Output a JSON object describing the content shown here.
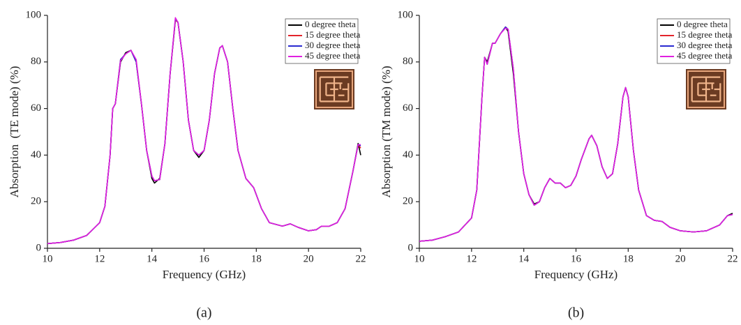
{
  "chart_data": [
    {
      "type": "line",
      "label": "(a)",
      "xlabel": "Frequency (GHz)",
      "ylabel": "Absorption  (TE mode) (%)",
      "xlim": [
        10,
        22
      ],
      "xticks": [
        10,
        12,
        14,
        16,
        18,
        20,
        22
      ],
      "ylim": [
        0,
        100
      ],
      "yticks": [
        0,
        20,
        40,
        60,
        80,
        100
      ],
      "legend": "upper right",
      "x": [
        10,
        10.5,
        11,
        11.5,
        12,
        12.2,
        12.4,
        12.5,
        12.6,
        12.8,
        13,
        13.2,
        13.4,
        13.6,
        13.8,
        14,
        14.1,
        14.3,
        14.5,
        14.7,
        14.9,
        15,
        15.2,
        15.4,
        15.6,
        15.8,
        16,
        16.2,
        16.4,
        16.6,
        16.7,
        16.9,
        17.1,
        17.3,
        17.6,
        17.9,
        18.2,
        18.5,
        19,
        19.3,
        19.6,
        20,
        20.3,
        20.5,
        20.8,
        21.1,
        21.4,
        21.7,
        21.9,
        22
      ],
      "series": [
        {
          "name": "0 degree theta",
          "color": "#000000",
          "values": [
            2,
            2.5,
            3.5,
            5.5,
            11,
            18,
            40,
            60,
            62,
            80,
            84,
            85,
            80,
            62,
            42,
            30,
            28,
            30,
            45,
            75,
            98,
            97,
            80,
            55,
            42,
            39,
            42,
            55,
            75,
            86,
            87,
            80,
            60,
            42,
            30,
            26,
            17,
            11,
            9.5,
            10.5,
            9,
            7.5,
            8,
            9.5,
            9.5,
            11,
            17,
            33,
            45,
            40
          ]
        },
        {
          "name": "15 degree theta",
          "color": "#e3242b",
          "values": [
            2,
            2.5,
            3.5,
            5.5,
            11,
            18,
            40,
            60,
            62,
            81,
            83.5,
            85,
            80,
            62,
            42,
            31,
            29,
            29.5,
            45,
            75,
            98,
            97,
            80,
            55,
            42,
            40,
            42,
            55,
            75,
            86,
            87,
            80,
            60,
            42,
            30,
            26,
            17,
            11,
            9.5,
            10.5,
            9,
            7.5,
            8,
            9.5,
            9.5,
            11,
            17,
            33,
            44.5,
            43
          ]
        },
        {
          "name": "30 degree theta",
          "color": "#2a2ad0",
          "values": [
            2,
            2.5,
            3.5,
            5.5,
            11,
            18,
            40,
            60,
            62,
            81,
            83.5,
            85,
            80,
            62,
            42,
            31,
            29,
            29.5,
            45,
            75,
            98.5,
            97,
            80,
            55,
            42,
            40,
            42,
            55,
            75,
            86,
            87,
            80,
            60,
            42,
            30,
            26,
            17,
            11,
            9.5,
            10.5,
            9,
            7.5,
            8,
            9.5,
            9.5,
            11,
            17,
            33,
            44.5,
            44
          ]
        },
        {
          "name": "45 degree theta",
          "color": "#e020e0",
          "values": [
            2,
            2.5,
            3.5,
            5.5,
            11,
            18,
            40,
            60,
            62,
            80.5,
            83.5,
            85,
            81,
            62,
            42,
            31,
            29,
            29.5,
            45,
            75,
            99,
            97,
            80,
            55,
            42,
            40,
            42,
            55,
            75,
            86,
            87,
            80,
            60,
            42,
            30,
            26,
            17,
            11,
            9.5,
            10.5,
            9,
            7.5,
            8,
            9.5,
            9.5,
            11,
            17,
            33,
            44.5,
            44.5
          ]
        }
      ]
    },
    {
      "type": "line",
      "label": "(b)",
      "xlabel": "Frequency (GHz)",
      "ylabel": "Absorption (TM mode) (%)",
      "xlim": [
        10,
        22
      ],
      "xticks": [
        10,
        12,
        14,
        16,
        18,
        20,
        22
      ],
      "ylim": [
        0,
        100
      ],
      "yticks": [
        0,
        20,
        40,
        60,
        80,
        100
      ],
      "legend": "upper right",
      "x": [
        10,
        10.5,
        11,
        11.5,
        12,
        12.2,
        12.4,
        12.5,
        12.6,
        12.8,
        12.9,
        13.1,
        13.3,
        13.4,
        13.6,
        13.8,
        14,
        14.2,
        14.4,
        14.6,
        14.8,
        15,
        15.2,
        15.4,
        15.6,
        15.8,
        16,
        16.2,
        16.5,
        16.6,
        16.8,
        17,
        17.2,
        17.4,
        17.6,
        17.8,
        17.9,
        18,
        18.2,
        18.4,
        18.7,
        19,
        19.3,
        19.6,
        20,
        20.5,
        21,
        21.5,
        21.8,
        22
      ],
      "series": [
        {
          "name": "0 degree theta",
          "color": "#000000",
          "values": [
            3,
            3.5,
            5,
            7,
            13,
            25,
            65,
            82,
            80,
            88,
            88,
            92,
            95,
            93,
            75,
            50,
            32,
            23,
            19,
            20,
            26,
            30,
            28,
            28,
            26,
            27,
            31,
            38,
            47,
            48.5,
            44,
            35,
            30,
            32,
            45,
            65,
            69,
            65,
            42,
            25,
            14,
            12,
            11.5,
            9,
            7.5,
            7,
            7.5,
            10,
            14,
            15
          ]
        },
        {
          "name": "15 degree theta",
          "color": "#e3242b",
          "values": [
            3,
            3.5,
            5,
            7,
            13,
            25,
            65,
            82,
            79,
            88,
            88,
            92,
            95,
            94,
            77,
            50,
            32,
            23,
            18.5,
            20,
            26,
            30,
            28,
            28,
            26,
            27,
            31,
            38,
            47,
            48.5,
            44,
            35,
            30,
            32,
            45,
            65,
            69,
            65,
            42,
            25,
            14,
            12,
            11.5,
            9,
            7.5,
            7,
            7.5,
            10,
            14,
            14.5
          ]
        },
        {
          "name": "30 degree theta",
          "color": "#2a2ad0",
          "values": [
            3,
            3.5,
            5,
            7,
            13,
            25,
            65,
            82,
            79,
            88,
            88,
            92,
            95,
            94,
            77,
            50,
            32,
            23,
            18.5,
            20,
            26,
            30,
            28,
            28,
            26,
            27,
            31,
            38,
            47,
            48.5,
            44,
            35,
            30,
            32,
            45,
            65,
            69,
            65,
            42,
            25,
            14,
            12,
            11.5,
            9,
            7.5,
            7,
            7.5,
            10,
            14,
            14.5
          ]
        },
        {
          "name": "45 degree theta",
          "color": "#e020e0",
          "values": [
            3,
            3.5,
            5,
            7,
            13,
            25,
            65,
            82,
            79,
            88,
            88,
            92,
            94.5,
            94,
            77,
            50,
            32,
            23,
            18.5,
            20,
            26,
            30,
            28,
            28,
            26,
            27,
            31,
            38,
            47,
            48.5,
            44,
            35,
            30,
            32,
            45,
            65,
            69,
            65,
            42,
            25,
            14,
            12,
            11.5,
            9,
            7.5,
            7,
            7.5,
            10,
            14,
            14.5
          ]
        }
      ]
    }
  ]
}
